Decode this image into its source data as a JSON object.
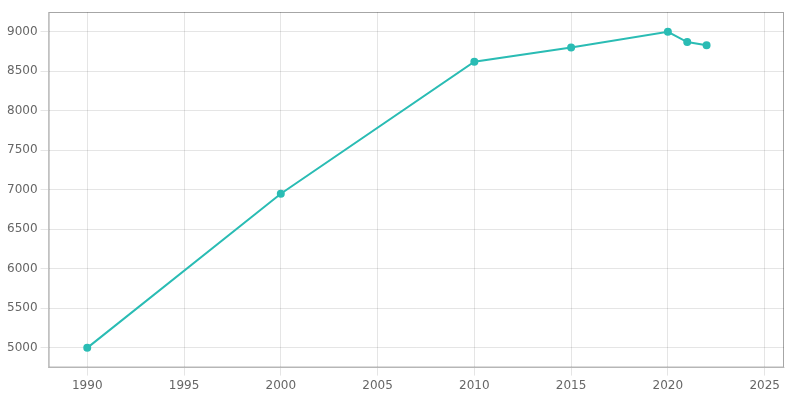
{
  "chart_data": {
    "type": "line",
    "x": [
      1990,
      2000,
      2010,
      2015,
      2020,
      2021,
      2022
    ],
    "values": [
      5000,
      6950,
      8620,
      8800,
      9000,
      8870,
      8830
    ],
    "color": "#2abcb4",
    "marker": "circle",
    "xlim": [
      1988,
      2026
    ],
    "ylim": [
      4750,
      9250
    ],
    "xticks": [
      1990,
      1995,
      2000,
      2005,
      2010,
      2015,
      2020,
      2025
    ],
    "yticks": [
      5000,
      5500,
      6000,
      6500,
      7000,
      7500,
      8000,
      8500,
      9000
    ],
    "grid": true
  }
}
